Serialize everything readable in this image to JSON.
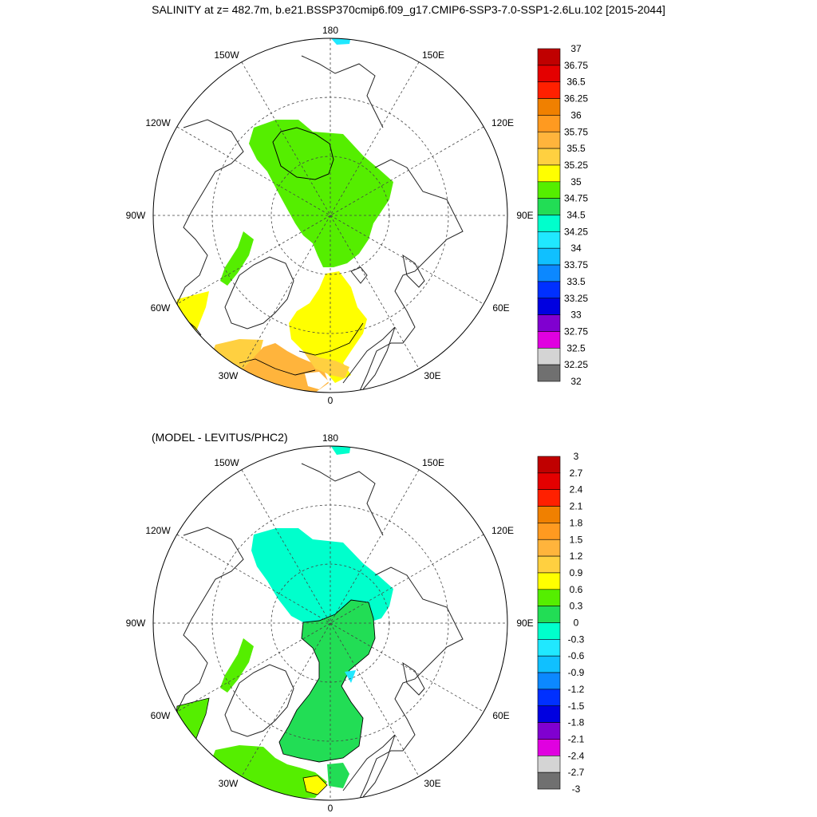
{
  "title": "SALINITY at z= 482.7m, b.e21.BSSP370cmip6.f09_g17.CMIP6-SSP3-7.0-SSP1-2.6Lu.102 [2015-2044]",
  "panel2_title": "(MODEL - LEVITUS/PHC2)",
  "longitude_labels": {
    "lon_180": "180",
    "lon_150E": "150E",
    "lon_120E": "120E",
    "lon_90E": "90E",
    "lon_60E": "60E",
    "lon_30E": "30E",
    "lon_0": "0",
    "lon_30W": "30W",
    "lon_60W": "60W",
    "lon_90W": "90W",
    "lon_120W": "120W",
    "lon_150W": "150W"
  },
  "colorbar_top": {
    "labels": [
      "37",
      "36.75",
      "36.5",
      "36.25",
      "36",
      "35.75",
      "35.5",
      "35.25",
      "35",
      "34.75",
      "34.5",
      "34.25",
      "34",
      "33.75",
      "33.5",
      "33.25",
      "33",
      "32.75",
      "32.5",
      "32.25",
      "32"
    ],
    "colors": [
      "#c00000",
      "#e40000",
      "#ff2000",
      "#f08000",
      "#ff9a20",
      "#ffb43c",
      "#ffd040",
      "#ffff00",
      "#55ee00",
      "#22dd55",
      "#00ffcc",
      "#20e8ff",
      "#10c0ff",
      "#0c88ff",
      "#0030ff",
      "#0000e0",
      "#8000d0",
      "#e000e0",
      "#d4d4d4",
      "#707070"
    ]
  },
  "colorbar_bottom": {
    "labels": [
      "3",
      "2.7",
      "2.4",
      "2.1",
      "1.8",
      "1.5",
      "1.2",
      "0.9",
      "0.6",
      "0.3",
      "0",
      "-0.3",
      "-0.6",
      "-0.9",
      "-1.2",
      "-1.5",
      "-1.8",
      "-2.1",
      "-2.4",
      "-2.7",
      "-3"
    ],
    "colors": [
      "#c00000",
      "#e40000",
      "#ff2000",
      "#f08000",
      "#ff9a20",
      "#ffb43c",
      "#ffd040",
      "#ffff00",
      "#55ee00",
      "#22dd55",
      "#00ffcc",
      "#20e8ff",
      "#10c0ff",
      "#0c88ff",
      "#0030ff",
      "#0000e0",
      "#8000d0",
      "#e000e0",
      "#d4d4d4",
      "#707070"
    ]
  },
  "field_colors": {
    "green": "#55ee00",
    "yellow": "#ffff00",
    "orange_light": "#ffd040",
    "orange": "#ffb43c",
    "cyan": "#00ffcc",
    "cyan_blue": "#20e8ff",
    "diff_green": "#22dd55"
  }
}
